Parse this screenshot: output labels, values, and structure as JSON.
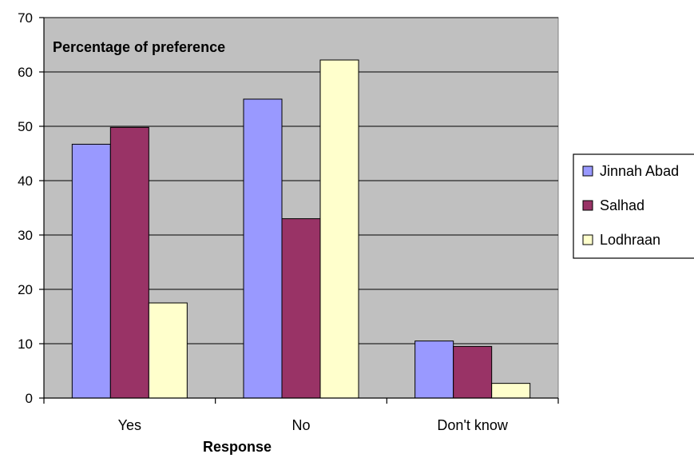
{
  "chart_data": {
    "type": "bar",
    "title": "Percentage of preference",
    "xlabel": "Response",
    "ylabel": "",
    "categories": [
      "Yes",
      "No",
      "Don't know"
    ],
    "ylim": [
      0,
      70
    ],
    "yticks": [
      0,
      10,
      20,
      30,
      40,
      50,
      60,
      70
    ],
    "grid": true,
    "legend_position": "right",
    "plot_background": "#c0c0c0",
    "series": [
      {
        "name": "Jinnah Abad",
        "color": "#9999ff",
        "values": [
          46.7,
          55.0,
          10.5
        ]
      },
      {
        "name": "Salhad",
        "color": "#993366",
        "values": [
          49.8,
          33.0,
          9.5
        ]
      },
      {
        "name": "Lodhraan",
        "color": "#ffffcc",
        "values": [
          17.5,
          62.2,
          2.7
        ]
      }
    ]
  }
}
